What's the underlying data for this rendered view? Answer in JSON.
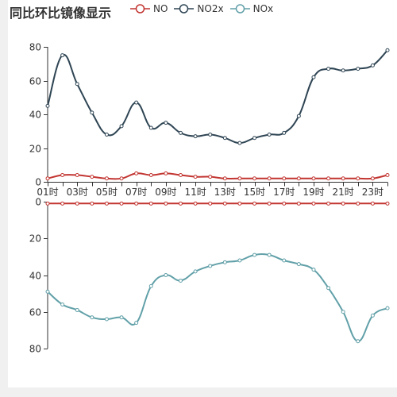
{
  "title": "同比环比镜像显示",
  "legend": [
    {
      "name": "NO",
      "color": "#c23531"
    },
    {
      "name": "NO2x",
      "color": "#2f4554"
    },
    {
      "name": "NOx",
      "color": "#61a0a8"
    }
  ],
  "chart_data": [
    {
      "type": "line",
      "position": "top",
      "categories": [
        "01时",
        "02时",
        "03时",
        "04时",
        "05时",
        "06时",
        "07时",
        "08时",
        "09时",
        "10时",
        "11时",
        "12时",
        "13时",
        "14时",
        "15时",
        "16时",
        "17时",
        "18时",
        "19时",
        "20时",
        "21时",
        "22时",
        "23时",
        "24时"
      ],
      "x_tick_labels": [
        "01时",
        "03时",
        "05时",
        "07时",
        "09时",
        "11时",
        "13时",
        "15时",
        "17时",
        "19时",
        "21时",
        "23时"
      ],
      "ylim": [
        0,
        80
      ],
      "y_ticks": [
        0,
        20,
        40,
        60,
        80
      ],
      "series": [
        {
          "name": "NO",
          "color": "#c23531",
          "values": [
            2,
            4,
            4,
            3,
            2,
            2,
            5,
            4,
            5,
            4,
            3,
            3,
            2,
            2,
            2,
            2,
            2,
            2,
            2,
            2,
            2,
            2,
            2,
            4
          ]
        },
        {
          "name": "NO2x",
          "color": "#2f4554",
          "values": [
            45,
            75,
            58,
            41,
            28,
            33,
            47,
            32,
            35,
            29,
            27,
            28,
            26,
            23,
            26,
            28,
            29,
            39,
            62,
            67,
            66,
            67,
            69,
            78
          ]
        }
      ]
    },
    {
      "type": "line",
      "position": "bottom",
      "inverse": true,
      "categories": [
        "01时",
        "02时",
        "03时",
        "04时",
        "05时",
        "06时",
        "07时",
        "08时",
        "09时",
        "10时",
        "11时",
        "12时",
        "13时",
        "14时",
        "15时",
        "16时",
        "17时",
        "18时",
        "19时",
        "20时",
        "21时",
        "22时",
        "23时",
        "24时"
      ],
      "ylim": [
        0,
        80
      ],
      "y_ticks": [
        0,
        20,
        40,
        60,
        80
      ],
      "series": [
        {
          "name": "NO",
          "color": "#c23531",
          "values": [
            1,
            1,
            1,
            1,
            1,
            1,
            1,
            1,
            1,
            1,
            1,
            1,
            1,
            1,
            1,
            1,
            1,
            1,
            1,
            1,
            1,
            1,
            1,
            1
          ]
        },
        {
          "name": "NOx",
          "color": "#61a0a8",
          "values": [
            49,
            56,
            59,
            63,
            64,
            63,
            66,
            46,
            40,
            43,
            38,
            35,
            33,
            32,
            29,
            29,
            32,
            34,
            37,
            47,
            60,
            76,
            62,
            58
          ]
        }
      ]
    }
  ]
}
